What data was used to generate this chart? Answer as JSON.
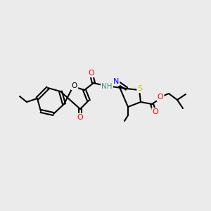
{
  "bg_color": "#ebebeb",
  "bond_color": "#000000",
  "title": "",
  "atom_colors": {
    "O": "#ff0000",
    "N": "#0000ff",
    "S": "#cccc00",
    "C": "#000000",
    "H": "#4a9090"
  },
  "figsize": [
    3.0,
    3.0
  ],
  "dpi": 100
}
